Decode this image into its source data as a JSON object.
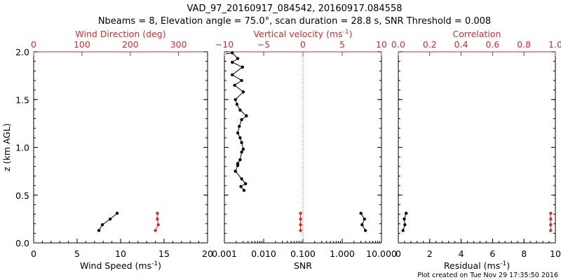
{
  "figure": {
    "title_line1": "VAD_97_20160917_084542, 20160917.084558",
    "title_line2": "Nbeams = 8, Elevation angle = 75.0°, scan duration = 28.8 s, SNR Threshold = 0.008",
    "footer": "Plot created on Tue Nov 29 17:35:50 2016",
    "colors": {
      "primary": "#000000",
      "secondary": "#d22b2b"
    }
  },
  "chart_data": [
    {
      "type": "line",
      "xlabel": "Wind Speed (ms⁻¹)",
      "xlim": [
        0,
        20
      ],
      "xticks": [
        0,
        5,
        10,
        15,
        20
      ],
      "x2label": "Wind Direction (deg)",
      "x2lim": [
        0,
        360
      ],
      "x2ticks": [
        0,
        100,
        200,
        300
      ],
      "ylabel": "z (km AGL)",
      "ylim": [
        0,
        2.0
      ],
      "yticks": [
        "0.0",
        "0.5",
        "1.0",
        "1.5",
        "2.0"
      ],
      "series": [
        {
          "axis": "bottom",
          "color": "#000000",
          "x": [
            7.5,
            7.9,
            8.8,
            9.6
          ],
          "y": [
            0.13,
            0.19,
            0.25,
            0.31
          ]
        },
        {
          "axis": "top",
          "color": "#d22b2b",
          "x": [
            252,
            258,
            256,
            256
          ],
          "y": [
            0.13,
            0.19,
            0.25,
            0.31
          ]
        }
      ]
    },
    {
      "type": "line",
      "xlabel": "SNR",
      "xscale": "log",
      "xlim": [
        0.001,
        10
      ],
      "xticks": [
        "0.001",
        "0.010",
        "0.100",
        "1.000",
        "10.000"
      ],
      "x2label": "Vertical velocity (ms⁻¹)",
      "x2lim": [
        -10,
        10
      ],
      "x2ticks": [
        "−10",
        "−5",
        "0",
        "5",
        "10"
      ],
      "ylim": [
        0,
        2.0
      ],
      "reference_line": {
        "axis": "top",
        "x": 0,
        "style": "dotted",
        "color": "#d22b2b"
      },
      "series": [
        {
          "axis": "top",
          "color": "#000000",
          "marker": "dot",
          "tail_without_markers": true,
          "x": [
            -7.5,
            -7.9,
            -7.3,
            -7.8,
            -8.6,
            -8.3,
            -8.3,
            -8.0,
            -7.8,
            -7.6,
            -7.8,
            -8.0,
            -8.3,
            -8.1,
            -7.8,
            -7.2,
            -8.0,
            -8.4,
            -8.6,
            -7.6,
            -8.7,
            -7.8,
            -9.0,
            -7.7,
            -9.0,
            -8.3,
            -9.0
          ],
          "y": [
            0.55,
            0.59,
            0.62,
            0.67,
            0.75,
            0.81,
            0.83,
            0.87,
            0.95,
            0.98,
            1.05,
            1.1,
            1.15,
            1.22,
            1.29,
            1.33,
            1.39,
            1.45,
            1.5,
            1.58,
            1.65,
            1.7,
            1.76,
            1.84,
            1.89,
            1.93,
            1.99
          ]
        },
        {
          "axis": "bottom",
          "color": "#000000",
          "x": [
            3.9,
            3.2,
            3.7,
            3.0
          ],
          "y": [
            0.13,
            0.19,
            0.25,
            0.31
          ]
        },
        {
          "axis": "top",
          "color": "#d22b2b",
          "x": [
            -0.3,
            -0.3,
            -0.3,
            -0.3
          ],
          "y": [
            0.13,
            0.19,
            0.25,
            0.31
          ]
        }
      ]
    },
    {
      "type": "line",
      "xlabel": "Residual (ms⁻¹)",
      "xlim": [
        0,
        10
      ],
      "xticks": [
        0,
        2,
        4,
        6,
        8,
        10
      ],
      "x2label": "Correlation",
      "x2lim": [
        0,
        1.0
      ],
      "x2ticks": [
        "0.0",
        "0.2",
        "0.4",
        "0.6",
        "0.8",
        "1.0"
      ],
      "ylim": [
        0,
        2.0
      ],
      "series": [
        {
          "axis": "bottom",
          "color": "#000000",
          "x": [
            0.3,
            0.42,
            0.38,
            0.5
          ],
          "y": [
            0.13,
            0.19,
            0.25,
            0.31
          ]
        },
        {
          "axis": "top",
          "color": "#d22b2b",
          "x": [
            0.97,
            0.97,
            0.97,
            0.97
          ],
          "y": [
            0.13,
            0.19,
            0.25,
            0.31
          ]
        }
      ]
    }
  ]
}
